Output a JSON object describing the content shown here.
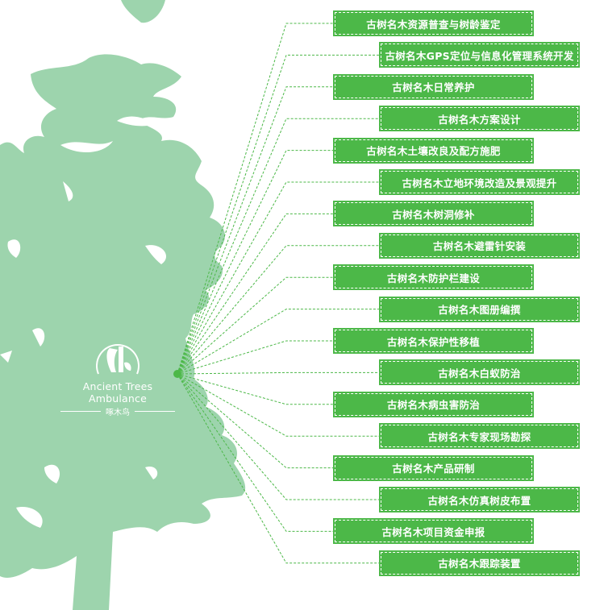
{
  "colors": {
    "tree": "#9dd4ad",
    "box": "#4cb848",
    "connector": "#4cb848",
    "text": "#ffffff"
  },
  "logo": {
    "icon": "woodpecker-on-tree-icon",
    "english": "Ancient Trees Ambulance",
    "chinese": "啄木鸟"
  },
  "services": [
    {
      "label": "古树名木资源普查与树龄鉴定",
      "side": "left"
    },
    {
      "label": "古树名木GPS定位与信息化管理系统开发",
      "side": "right"
    },
    {
      "label": "古树名木日常养护",
      "side": "left"
    },
    {
      "label": "古树名木方案设计",
      "side": "right"
    },
    {
      "label": "古树名木土壤改良及配方施肥",
      "side": "left"
    },
    {
      "label": "古树名木立地环境改造及景观提升",
      "side": "right"
    },
    {
      "label": "古树名木树洞修补",
      "side": "left"
    },
    {
      "label": "古树名木避雷针安装",
      "side": "right"
    },
    {
      "label": "古树名木防护栏建设",
      "side": "left"
    },
    {
      "label": "古树名木图册编撰",
      "side": "right"
    },
    {
      "label": "古树名木保护性移植",
      "side": "left"
    },
    {
      "label": "古树名木白蚁防治",
      "side": "right"
    },
    {
      "label": "古树名木病虫害防治",
      "side": "left"
    },
    {
      "label": "古树名木专家现场勘探",
      "side": "right"
    },
    {
      "label": "古树名木产品研制",
      "side": "left"
    },
    {
      "label": "古树名木仿真树皮布置",
      "side": "right"
    },
    {
      "label": "古树名木项目资金申报",
      "side": "left"
    },
    {
      "label": "古树名木跟踪装置",
      "side": "right"
    }
  ]
}
